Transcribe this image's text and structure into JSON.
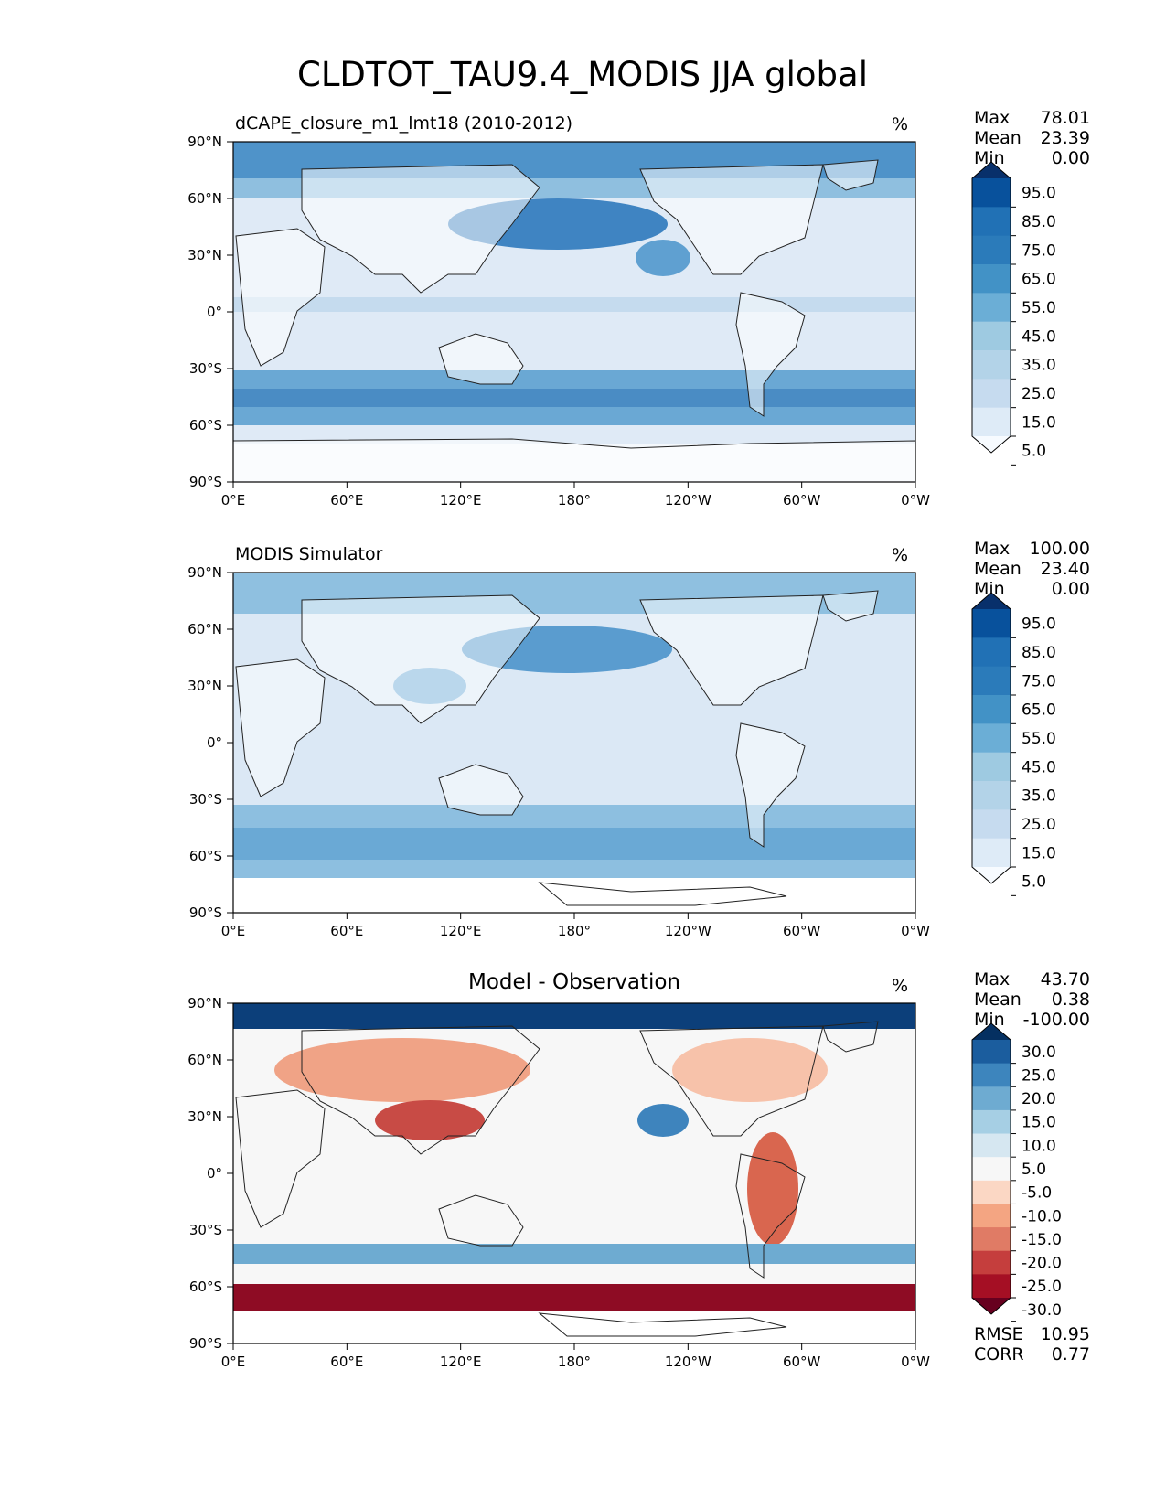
{
  "chart_data": {
    "type": "heatmap",
    "title": "CLDTOT_TAU9.4_MODIS JJA global",
    "x_ticks": [
      "0°E",
      "60°E",
      "120°E",
      "180°",
      "120°W",
      "60°W",
      "0°W"
    ],
    "y_ticks": [
      "90°N",
      "60°N",
      "30°N",
      "0°",
      "30°S",
      "60°S",
      "90°S"
    ],
    "xlim": [
      0,
      360
    ],
    "ylim": [
      -90,
      90
    ],
    "panels": [
      {
        "title": "dCAPE_closure_m1_lmt18 (2010-2012)",
        "title_align": "left",
        "units": "%",
        "stats": [
          {
            "label": "Max",
            "value": "78.01"
          },
          {
            "label": "Mean",
            "value": "23.39"
          },
          {
            "label": "Min",
            "value": "0.00"
          }
        ],
        "colorbar": {
          "colors": [
            "#f7fbff",
            "#deebf7",
            "#c6dbef",
            "#b3d3e8",
            "#9ecae1",
            "#6baed6",
            "#4292c6",
            "#2b7bba",
            "#2171b5",
            "#08519c",
            "#08306b"
          ],
          "labels": [
            "95.0",
            "85.0",
            "75.0",
            "65.0",
            "55.0",
            "45.0",
            "35.0",
            "25.0",
            "15.0",
            "5.0"
          ]
        }
      },
      {
        "title": "MODIS Simulator",
        "title_align": "left",
        "units": "%",
        "stats": [
          {
            "label": "Max",
            "value": "100.00"
          },
          {
            "label": "Mean",
            "value": "23.40"
          },
          {
            "label": "Min",
            "value": "0.00"
          }
        ],
        "colorbar": {
          "colors": [
            "#f7fbff",
            "#deebf7",
            "#c6dbef",
            "#b3d3e8",
            "#9ecae1",
            "#6baed6",
            "#4292c6",
            "#2b7bba",
            "#2171b5",
            "#08519c",
            "#08306b"
          ],
          "labels": [
            "95.0",
            "85.0",
            "75.0",
            "65.0",
            "55.0",
            "45.0",
            "35.0",
            "25.0",
            "15.0",
            "5.0"
          ]
        }
      },
      {
        "title": "Model - Observation",
        "title_align": "center",
        "units": "%",
        "stats": [
          {
            "label": "Max",
            "value": "43.70"
          },
          {
            "label": "Mean",
            "value": "0.38"
          },
          {
            "label": "Min",
            "value": "-100.00"
          }
        ],
        "extra_stats": [
          {
            "label": "RMSE",
            "value": "10.95"
          },
          {
            "label": "CORR",
            "value": "0.77"
          }
        ],
        "colorbar": {
          "colors": [
            "#67001f",
            "#a50f24",
            "#c53e3d",
            "#e07b65",
            "#f4a582",
            "#fbd7c4",
            "#f7f7f7",
            "#d6e7f1",
            "#a6cfe4",
            "#6eabd1",
            "#3d85bd",
            "#1b5d9e",
            "#053061"
          ],
          "labels": [
            "30.0",
            "25.0",
            "20.0",
            "15.0",
            "10.0",
            "5.0",
            "-5.0",
            "-10.0",
            "-15.0",
            "-20.0",
            "-25.0",
            "-30.0"
          ]
        }
      }
    ]
  }
}
